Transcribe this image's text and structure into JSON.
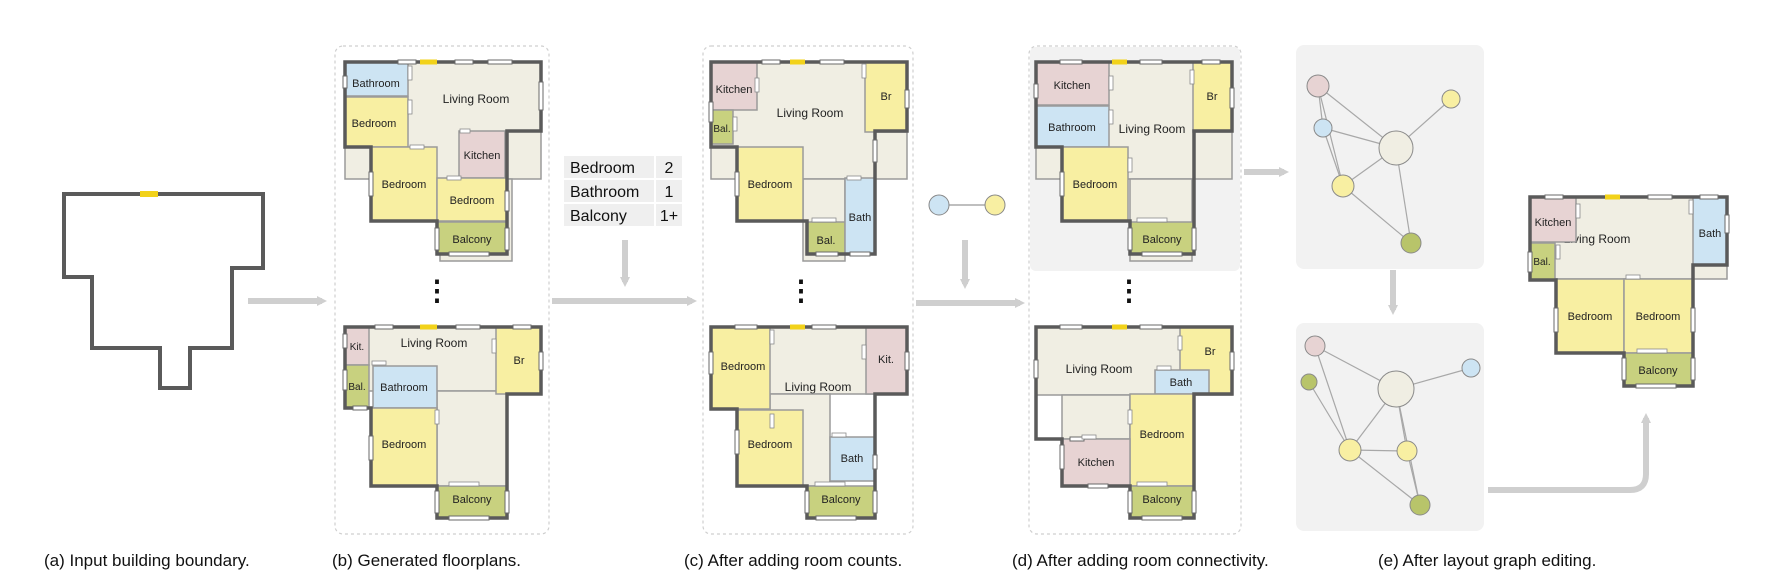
{
  "colors": {
    "wall": "#5a5a5a",
    "living": "#f0eee3",
    "bedroom": "#f8efa2",
    "bathroom": "#cde4f3",
    "kitchen": "#e7d3d3",
    "balcony": "#c8d17f",
    "door": "#f2d21a",
    "arrow": "#cfcfcf",
    "panel": "#f2f2f2",
    "node_living": "#f0eee3",
    "node_bedroom": "#f8efa2",
    "node_bathroom": "#cde4f3",
    "node_kitchen": "#e7d3d3",
    "node_balcony": "#b8c46a"
  },
  "labels": {
    "living": "Living Room",
    "bedroom": "Bedroom",
    "bathroom": "Bathroom",
    "bath": "Bath",
    "kitchen": "Kitchen",
    "kit": "Kit.",
    "balcony": "Balcony",
    "bal": "Bal.",
    "br": "Br"
  },
  "ellipsis": "⋮",
  "room_counts": [
    {
      "type": "Bedroom",
      "count": "2"
    },
    {
      "type": "Bathroom",
      "count": "1"
    },
    {
      "type": "Balcony",
      "count": "1+"
    }
  ],
  "captions": {
    "a": "(a) Input building boundary.",
    "b": "(b) Generated floorplans.",
    "c": "(c) After adding room counts.",
    "d": "(d) After adding room connectivity.",
    "e": "(e) After layout graph editing."
  }
}
